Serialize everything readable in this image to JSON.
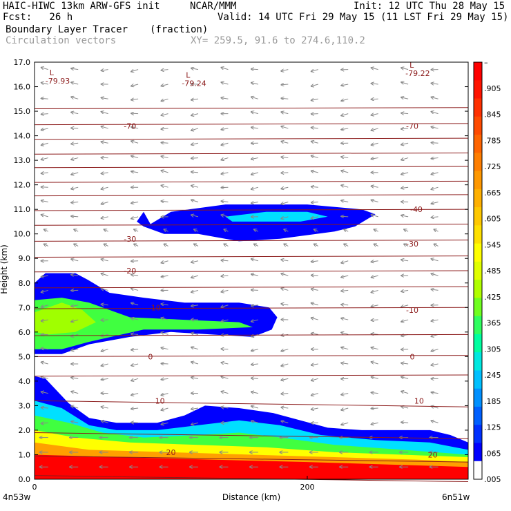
{
  "header": {
    "model": "HAIC-HIWC 13km ARW-GFS init",
    "org": "NCAR/MMM",
    "init": "Init: 12 UTC Thu 28 May 15",
    "fcst": "Fcst:   26 h",
    "valid": "Valid: 14 UTC Fri 29 May 15 (11 LST Fri 29 May 15)",
    "field1": "Boundary Layer Tracer",
    "field1_units": "(fraction)",
    "field2": "Circulation vectors",
    "xy": "XY= 259.5, 91.6 to 274.6,110.2"
  },
  "colors": {
    "contour": "#8b1a1a",
    "tracer_levels": [
      "#0000ff",
      "#0050ff",
      "#00a0ff",
      "#00e0ff",
      "#00ffc0",
      "#40ff40",
      "#a0ff00",
      "#e0ff00",
      "#ffff00",
      "#ffe000",
      "#ffc000",
      "#ffa000",
      "#ff8000",
      "#ff6000",
      "#ff3000",
      "#ff0000"
    ]
  },
  "chart_data": {
    "type": "heatmap",
    "title": "Boundary Layer Tracer",
    "ylabel": "Height (km)",
    "xlabel": "Distance (km)",
    "ylim": [
      0,
      17
    ],
    "xlim": [
      0,
      318
    ],
    "yticks": [
      "0.0",
      "1.0",
      "2.0",
      "3.0",
      "4.0",
      "5.0",
      "6.0",
      "7.0",
      "8.0",
      "9.0",
      "10.0",
      "11.0",
      "12.0",
      "13.0",
      "14.0",
      "15.0",
      "16.0",
      "17.0"
    ],
    "xticks": [
      {
        "value": 0,
        "label": "0"
      },
      {
        "value": 200,
        "label": "200"
      }
    ],
    "x_end_labels": {
      "left": "4n53w",
      "right": "6n51w"
    },
    "colorbar": {
      "labels": [
        "–",
        ".905",
        ".845",
        ".785",
        ".725",
        ".665",
        ".605",
        ".545",
        ".485",
        ".425",
        ".365",
        ".305",
        ".245",
        ".185",
        ".125",
        ".065",
        ".005"
      ],
      "colors": [
        "#ff0000",
        "#ff1400",
        "#ff3000",
        "#ff4a00",
        "#ff6400",
        "#ff7e00",
        "#ff9800",
        "#ffb000",
        "#ffc800",
        "#ffe000",
        "#ffff00",
        "#e0ff00",
        "#b0ff00",
        "#70ff20",
        "#30ff60",
        "#00ffa0",
        "#00e8e0",
        "#00c0ff",
        "#0090ff",
        "#0060ff",
        "#0030ff",
        "#0000ff",
        "#ffffff"
      ]
    },
    "temperature_labels": [
      {
        "x": 70,
        "y": 14.4,
        "text": "-70"
      },
      {
        "x": 277,
        "y": 14.4,
        "text": "-70"
      },
      {
        "x": 280,
        "y": 11.0,
        "text": "-40"
      },
      {
        "x": 70,
        "y": 9.8,
        "text": "-30"
      },
      {
        "x": 277,
        "y": 9.6,
        "text": "-30"
      },
      {
        "x": 70,
        "y": 8.5,
        "text": "-20"
      },
      {
        "x": 88,
        "y": 7.0,
        "text": "-10"
      },
      {
        "x": 277,
        "y": 6.9,
        "text": "-10"
      },
      {
        "x": 85,
        "y": 5.0,
        "text": "0"
      },
      {
        "x": 277,
        "y": 5.0,
        "text": "0"
      },
      {
        "x": 92,
        "y": 3.2,
        "text": "10"
      },
      {
        "x": 282,
        "y": 3.2,
        "text": "10"
      },
      {
        "x": 100,
        "y": 1.1,
        "text": "20"
      },
      {
        "x": 292,
        "y": 1.0,
        "text": "20"
      }
    ],
    "pressure_lows": [
      {
        "x": 8,
        "y": 16.3,
        "text": "-79.93",
        "marker": "L"
      },
      {
        "x": 108,
        "y": 16.2,
        "text": "-79.24",
        "marker": "L"
      },
      {
        "x": 272,
        "y": 16.6,
        "text": "-79.22",
        "marker": "L"
      }
    ],
    "isotherm_heights": [
      0.15,
      0.95,
      1.9,
      3.2,
      4.2,
      5.0,
      5.85,
      6.95,
      7.8,
      8.45,
      9.05,
      9.7,
      10.35,
      10.95,
      11.55,
      12.1,
      12.7,
      13.25,
      13.85,
      14.45,
      15.1
    ],
    "tracer_regions": [
      {
        "name": "upper-cloud",
        "level": 0,
        "polygon": [
          [
            75,
            10.5
          ],
          [
            80,
            10.9
          ],
          [
            85,
            10.4
          ],
          [
            100,
            10.9
          ],
          [
            140,
            11.2
          ],
          [
            200,
            11.2
          ],
          [
            240,
            11.0
          ],
          [
            250,
            10.8
          ],
          [
            235,
            10.3
          ],
          [
            220,
            10.1
          ],
          [
            180,
            9.8
          ],
          [
            150,
            9.7
          ],
          [
            120,
            10.0
          ],
          [
            95,
            10.0
          ],
          [
            80,
            10.3
          ]
        ]
      },
      {
        "name": "upper-cloud-core",
        "level": 3,
        "polygon": [
          [
            140,
            10.7
          ],
          [
            170,
            10.9
          ],
          [
            200,
            10.9
          ],
          [
            215,
            10.7
          ],
          [
            195,
            10.5
          ],
          [
            165,
            10.5
          ],
          [
            145,
            10.5
          ]
        ]
      },
      {
        "name": "mid-layer",
        "level": 0,
        "polygon": [
          [
            0,
            8.0
          ],
          [
            8,
            8.4
          ],
          [
            30,
            8.4
          ],
          [
            40,
            8.1
          ],
          [
            55,
            7.6
          ],
          [
            80,
            7.4
          ],
          [
            110,
            7.2
          ],
          [
            150,
            7.2
          ],
          [
            172,
            7.0
          ],
          [
            178,
            6.6
          ],
          [
            174,
            6.1
          ],
          [
            160,
            5.8
          ],
          [
            130,
            5.9
          ],
          [
            100,
            6.0
          ],
          [
            70,
            5.8
          ],
          [
            40,
            5.5
          ],
          [
            20,
            5.1
          ],
          [
            0,
            5.1
          ]
        ]
      },
      {
        "name": "mid-layer-inner",
        "level": 5,
        "polygon": [
          [
            0,
            7.3
          ],
          [
            20,
            7.4
          ],
          [
            40,
            7.2
          ],
          [
            70,
            6.6
          ],
          [
            110,
            6.5
          ],
          [
            150,
            6.4
          ],
          [
            160,
            6.2
          ],
          [
            120,
            6.1
          ],
          [
            80,
            6.1
          ],
          [
            40,
            5.6
          ],
          [
            20,
            5.3
          ],
          [
            0,
            5.3
          ]
        ]
      },
      {
        "name": "mid-layer-core",
        "level": 6,
        "polygon": [
          [
            0,
            6.8
          ],
          [
            20,
            7.2
          ],
          [
            35,
            6.9
          ],
          [
            45,
            6.4
          ],
          [
            30,
            6.0
          ],
          [
            10,
            5.9
          ],
          [
            0,
            6.0
          ]
        ]
      },
      {
        "name": "boundary-layer",
        "level": 0,
        "polygon": [
          [
            0,
            4.2
          ],
          [
            8,
            4.1
          ],
          [
            25,
            3.1
          ],
          [
            40,
            2.5
          ],
          [
            60,
            2.3
          ],
          [
            90,
            2.3
          ],
          [
            110,
            2.6
          ],
          [
            125,
            3.0
          ],
          [
            150,
            2.9
          ],
          [
            175,
            2.7
          ],
          [
            195,
            2.4
          ],
          [
            215,
            2.1
          ],
          [
            240,
            2.0
          ],
          [
            270,
            2.0
          ],
          [
            290,
            2.0
          ],
          [
            305,
            1.8
          ],
          [
            318,
            1.5
          ],
          [
            318,
            0
          ],
          [
            0,
            0
          ]
        ]
      },
      {
        "name": "bl-l2",
        "level": 3,
        "polygon": [
          [
            0,
            3.2
          ],
          [
            20,
            2.9
          ],
          [
            40,
            2.2
          ],
          [
            60,
            2.0
          ],
          [
            90,
            2.0
          ],
          [
            120,
            2.2
          ],
          [
            150,
            2.4
          ],
          [
            180,
            2.2
          ],
          [
            210,
            1.8
          ],
          [
            250,
            1.6
          ],
          [
            290,
            1.5
          ],
          [
            318,
            1.2
          ],
          [
            318,
            0
          ],
          [
            0,
            0
          ]
        ]
      },
      {
        "name": "bl-l3",
        "level": 5,
        "polygon": [
          [
            0,
            2.6
          ],
          [
            25,
            2.3
          ],
          [
            50,
            1.9
          ],
          [
            80,
            1.7
          ],
          [
            120,
            1.8
          ],
          [
            150,
            1.9
          ],
          [
            180,
            1.7
          ],
          [
            220,
            1.4
          ],
          [
            270,
            1.2
          ],
          [
            318,
            1.0
          ],
          [
            318,
            0
          ],
          [
            0,
            0
          ]
        ]
      },
      {
        "name": "bl-l4",
        "level": 8,
        "polygon": [
          [
            0,
            2.0
          ],
          [
            30,
            1.7
          ],
          [
            70,
            1.5
          ],
          [
            120,
            1.4
          ],
          [
            170,
            1.3
          ],
          [
            220,
            1.1
          ],
          [
            270,
            1.0
          ],
          [
            318,
            0.9
          ],
          [
            318,
            0
          ],
          [
            0,
            0
          ]
        ]
      },
      {
        "name": "bl-l5",
        "level": 11,
        "polygon": [
          [
            0,
            1.5
          ],
          [
            40,
            1.2
          ],
          [
            100,
            1.1
          ],
          [
            160,
            1.0
          ],
          [
            220,
            0.9
          ],
          [
            280,
            0.8
          ],
          [
            318,
            0.7
          ],
          [
            318,
            0
          ],
          [
            0,
            0
          ]
        ]
      },
      {
        "name": "bl-l6",
        "level": 15,
        "polygon": [
          [
            0,
            1.0
          ],
          [
            60,
            0.9
          ],
          [
            130,
            0.8
          ],
          [
            200,
            0.7
          ],
          [
            260,
            0.6
          ],
          [
            318,
            0.5
          ],
          [
            318,
            0
          ],
          [
            0,
            0
          ]
        ]
      }
    ]
  }
}
